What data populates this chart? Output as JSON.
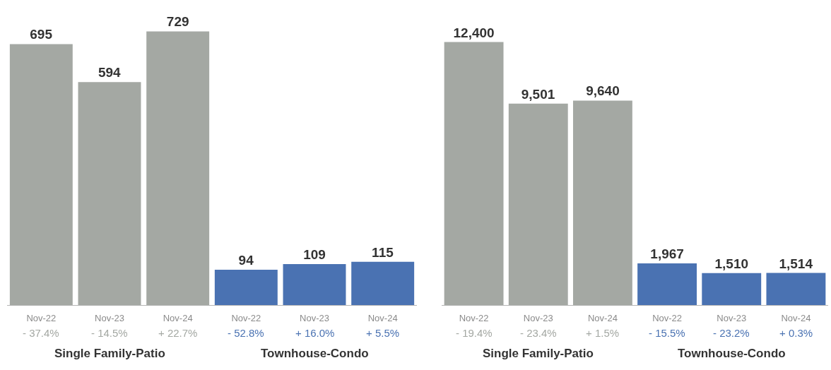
{
  "chart_data": [
    {
      "type": "bar",
      "categories": [
        "Nov-22",
        "Nov-23",
        "Nov-24",
        "Nov-22",
        "Nov-23",
        "Nov-24"
      ],
      "series": [
        {
          "color": "#a4a8a3",
          "values": [
            695,
            594,
            729,
            null,
            null,
            null
          ],
          "value_labels": [
            "695",
            "594",
            "729",
            null,
            null,
            null
          ]
        },
        {
          "color": "#4a72b2",
          "values": [
            null,
            null,
            null,
            94,
            109,
            115
          ],
          "value_labels": [
            null,
            null,
            null,
            "94",
            "109",
            "115"
          ]
        }
      ],
      "annotations": [
        "- 37.4%",
        "- 14.5%",
        "+ 22.7%",
        "- 52.8%",
        "+ 16.0%",
        "+ 5.5%",
        "Single Family-Patio",
        "Townhouse-Condo"
      ]
    },
    {
      "type": "bar",
      "categories": [
        "Nov-22",
        "Nov-23",
        "Nov-24",
        "Nov-22",
        "Nov-23",
        "Nov-24"
      ],
      "series": [
        {
          "color": "#a4a8a3",
          "values": [
            12400,
            9501,
            9640,
            null,
            null,
            null
          ],
          "value_labels": [
            "12,400",
            "9,501",
            "9,640",
            null,
            null,
            null
          ]
        },
        {
          "color": "#4a72b2",
          "values": [
            null,
            null,
            null,
            1967,
            1510,
            1514
          ],
          "value_labels": [
            null,
            null,
            null,
            "1,967",
            "1,510",
            "1,514"
          ]
        }
      ],
      "annotations": [
        "- 19.4%",
        "- 23.4%",
        "+ 1.5%",
        "- 15.5%",
        "- 23.2%",
        "+ 0.3%",
        "Single Family-Patio",
        "Townhouse-Condo"
      ]
    }
  ]
}
